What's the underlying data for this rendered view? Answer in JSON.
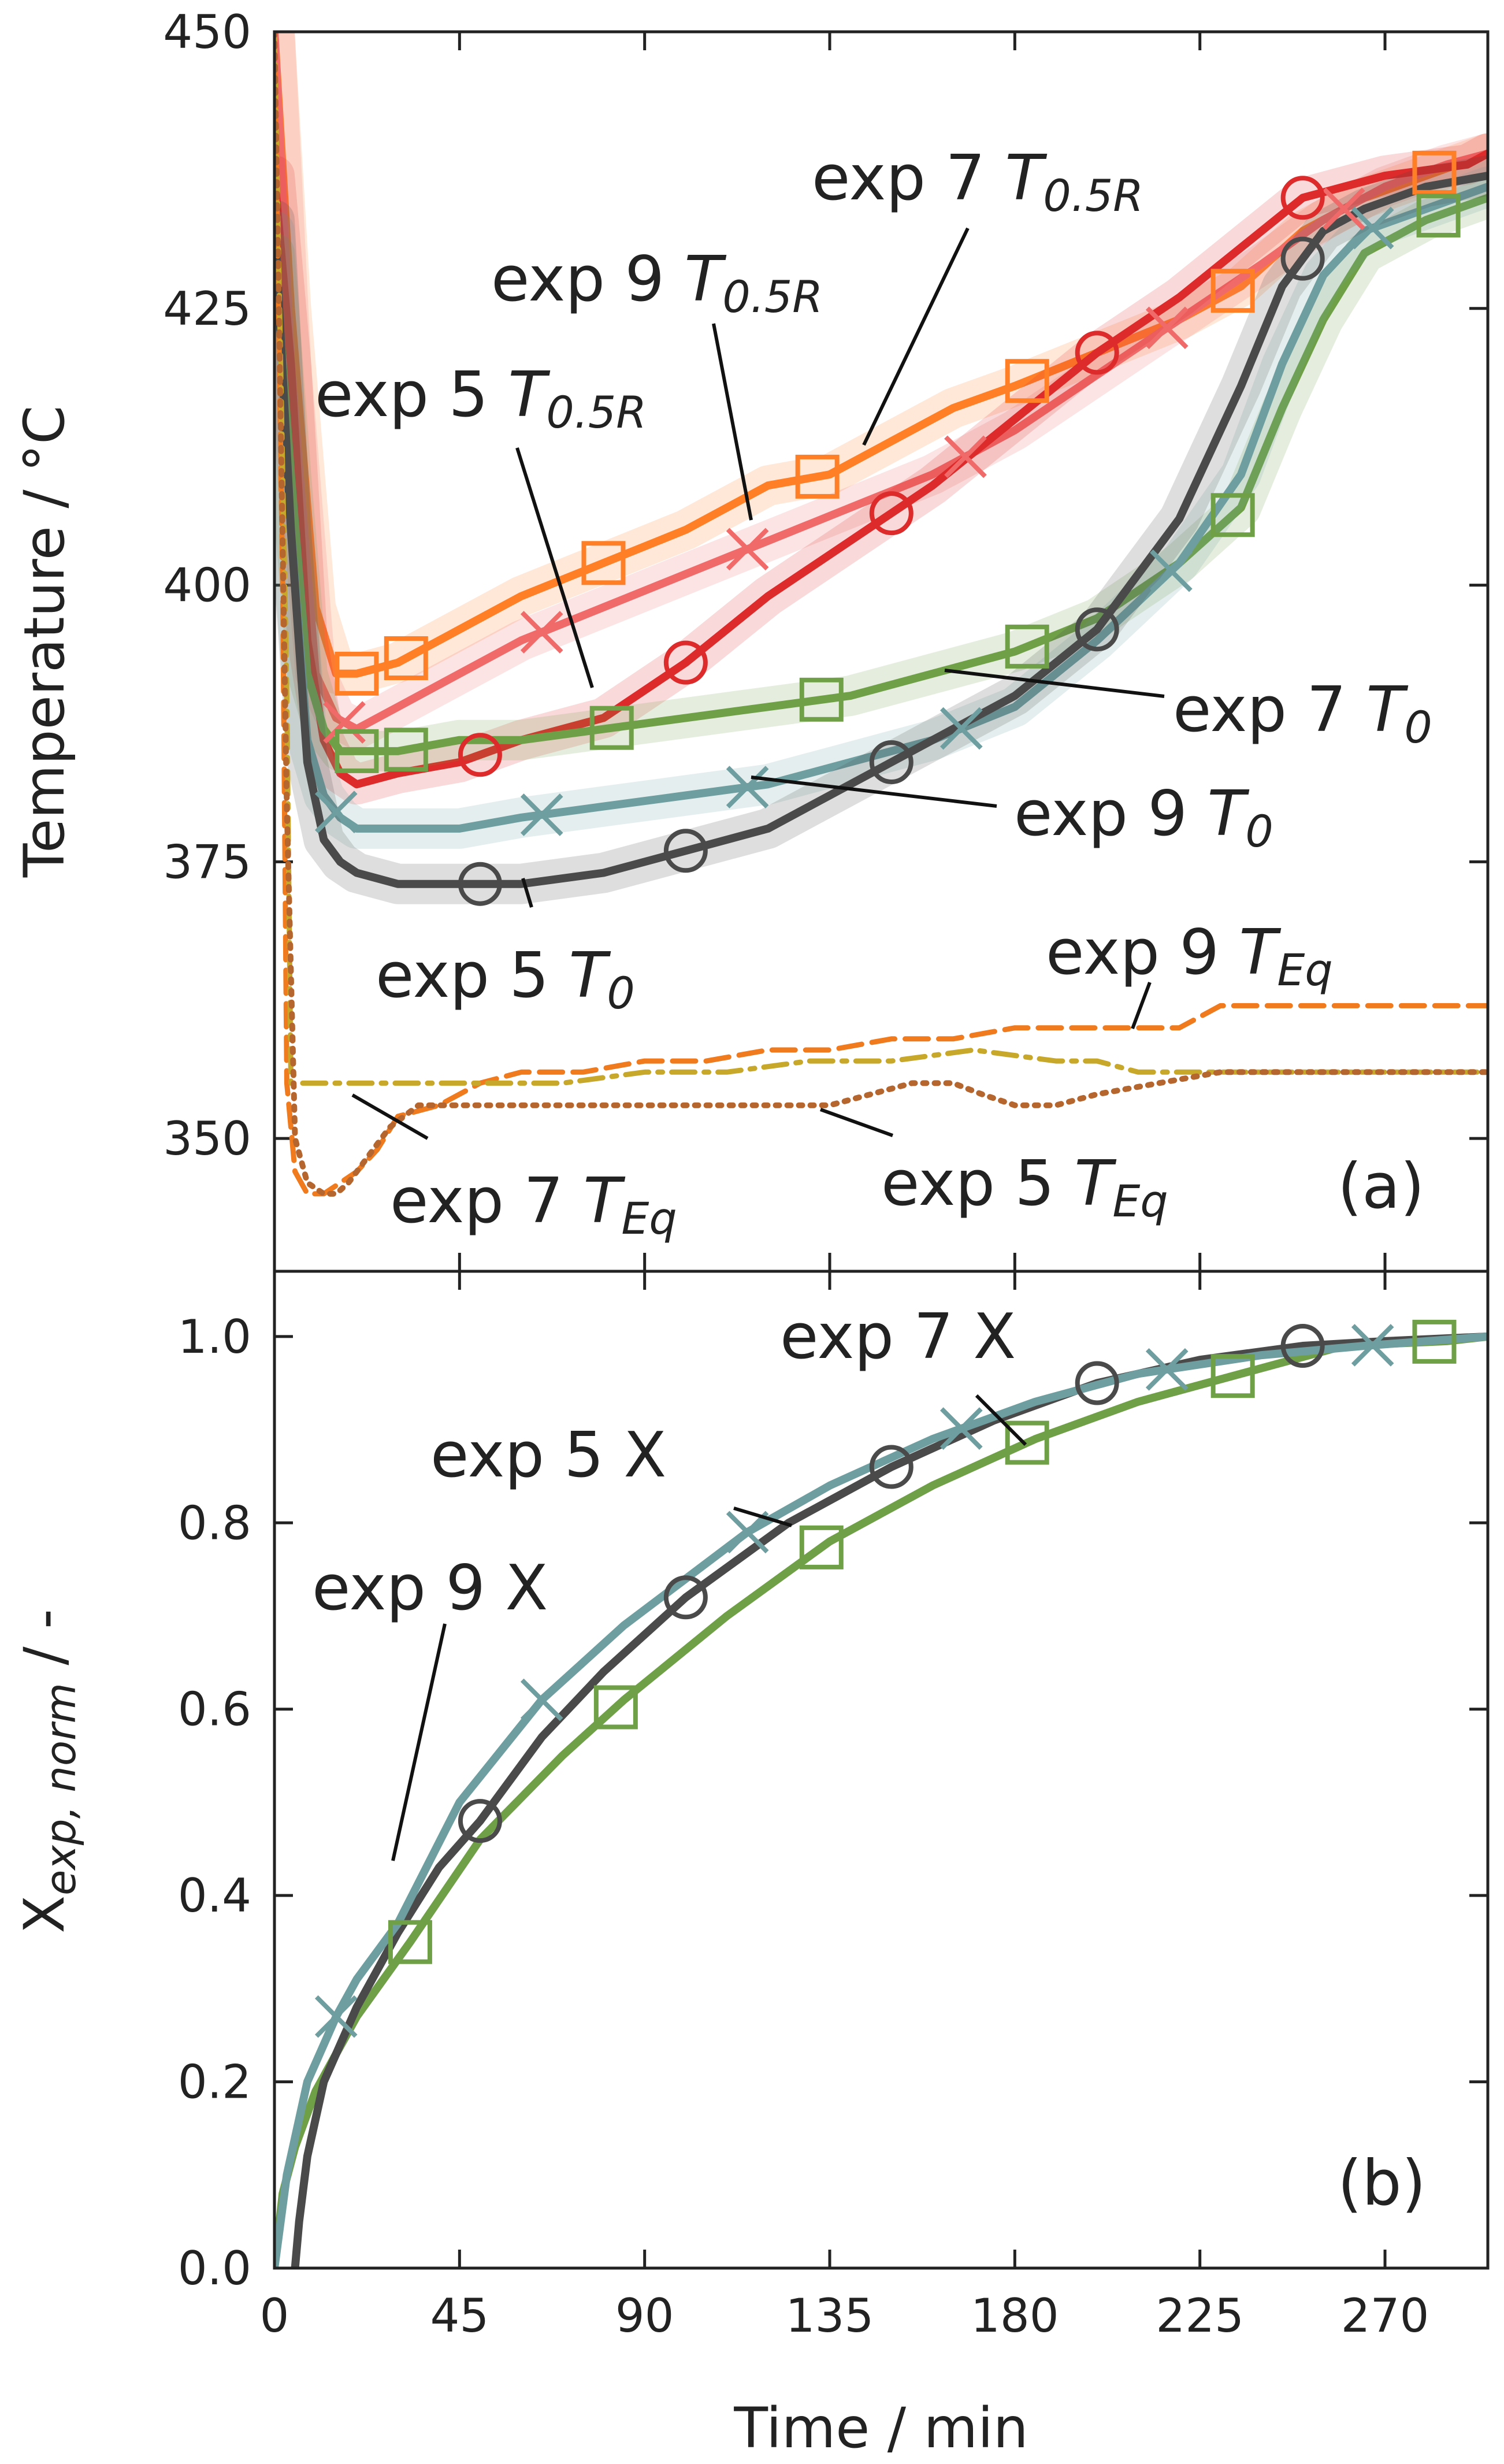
{
  "chart_data": [
    {
      "panel": "a",
      "type": "line",
      "ylabel": "Temperature / °C",
      "xlim": [
        0,
        295
      ],
      "ylim": [
        338,
        450
      ],
      "yticks": [
        350,
        375,
        400,
        425,
        450
      ],
      "panel_label": "(a)",
      "series": [
        {
          "name": "exp 7 T0.5R",
          "color": "#ff7f27",
          "marker": "square",
          "x": [
            0,
            4,
            10,
            15,
            20,
            30,
            45,
            60,
            80,
            100,
            120,
            135,
            150,
            165,
            180,
            200,
            220,
            235,
            250,
            265,
            280,
            295
          ],
          "y": [
            450,
            425,
            398,
            392,
            392,
            393,
            396,
            399,
            402,
            405,
            409,
            410,
            413,
            416,
            418,
            421,
            424,
            427,
            432,
            435,
            437,
            439
          ],
          "marker_x": [
            20,
            32,
            80,
            132,
            183,
            233,
            282
          ]
        },
        {
          "name": "exp 9 T0.5R",
          "color": "#f06a6a",
          "marker": "x",
          "x": [
            0,
            4,
            10,
            15,
            20,
            30,
            45,
            60,
            80,
            100,
            120,
            140,
            160,
            180,
            200,
            220,
            240,
            255,
            270,
            285,
            295
          ],
          "y": [
            450,
            420,
            392,
            388,
            387,
            389,
            392,
            395,
            398,
            401,
            404,
            407,
            410,
            414,
            419,
            424,
            429,
            433,
            436,
            438,
            439
          ],
          "marker_x": [
            17,
            65,
            115,
            168,
            217,
            260
          ]
        },
        {
          "name": "exp 5 T0.5R",
          "color": "#dd2a2a",
          "marker": "circle",
          "x": [
            0,
            4,
            8,
            12,
            16,
            20,
            30,
            45,
            60,
            80,
            100,
            120,
            140,
            160,
            180,
            200,
            220,
            240,
            250,
            270,
            290,
            295
          ],
          "y": [
            437,
            420,
            395,
            386,
            383,
            382,
            383,
            384,
            386,
            388,
            393,
            399,
            404,
            409,
            415,
            421,
            426,
            432,
            435,
            437,
            438,
            439
          ],
          "marker_x": [
            50,
            100,
            150,
            200,
            250
          ]
        },
        {
          "name": "exp 7 T0",
          "color": "#6fa048",
          "marker": "square",
          "x": [
            0,
            4,
            8,
            12,
            16,
            20,
            30,
            45,
            60,
            80,
            100,
            120,
            140,
            160,
            180,
            200,
            220,
            235,
            245,
            255,
            265,
            280,
            295
          ],
          "y": [
            430,
            410,
            392,
            387,
            385,
            385,
            385,
            386,
            386,
            387,
            388,
            389,
            390,
            392,
            394,
            397,
            402,
            407,
            416,
            424,
            430,
            433,
            435
          ],
          "marker_x": [
            20,
            32,
            82,
            133,
            183,
            233,
            283
          ]
        },
        {
          "name": "exp 9 T0",
          "color": "#6e9ea0",
          "marker": "x",
          "x": [
            0,
            4,
            8,
            12,
            16,
            20,
            30,
            45,
            60,
            80,
            100,
            120,
            140,
            160,
            180,
            200,
            220,
            235,
            245,
            255,
            265,
            280,
            295
          ],
          "y": [
            432,
            405,
            386,
            381,
            379,
            378,
            378,
            378,
            379,
            380,
            381,
            382,
            384,
            386,
            389,
            395,
            402,
            410,
            420,
            428,
            432,
            434,
            436
          ],
          "marker_x": [
            15,
            65,
            115,
            167,
            218,
            267
          ]
        },
        {
          "name": "exp 5 T0",
          "color": "#4a4a4a",
          "marker": "circle",
          "x": [
            0,
            4,
            8,
            12,
            16,
            20,
            30,
            45,
            60,
            80,
            100,
            120,
            140,
            160,
            180,
            200,
            220,
            235,
            245,
            255,
            265,
            280,
            295
          ],
          "y": [
            433,
            405,
            384,
            377,
            375,
            374,
            373,
            373,
            373,
            374,
            376,
            378,
            382,
            386,
            390,
            396,
            406,
            418,
            427,
            432,
            434,
            436,
            437
          ],
          "marker_x": [
            50,
            100,
            150,
            200,
            250
          ]
        },
        {
          "name": "exp 9 TEq",
          "color": "#f07a1e",
          "style": "dashed",
          "x": [
            0,
            2,
            3,
            5,
            8,
            12,
            16,
            20,
            25,
            30,
            40,
            50,
            60,
            75,
            90,
            105,
            120,
            135,
            150,
            165,
            180,
            200,
            220,
            230,
            240,
            260,
            280,
            295
          ],
          "y": [
            450,
            400,
            355,
            347,
            345,
            345,
            346,
            347,
            349,
            352,
            353,
            355,
            356,
            356,
            357,
            357,
            358,
            358,
            359,
            359,
            360,
            360,
            360,
            362,
            362,
            362,
            362,
            362
          ]
        },
        {
          "name": "exp 7 TEq",
          "color": "#c8a82a",
          "style": "dashdot",
          "x": [
            0,
            3,
            4,
            8,
            15,
            25,
            40,
            55,
            70,
            90,
            110,
            130,
            150,
            170,
            190,
            200,
            210,
            220,
            235,
            250,
            270,
            295
          ],
          "y": [
            450,
            390,
            355,
            355,
            355,
            355,
            355,
            355,
            355,
            356,
            356,
            357,
            357,
            358,
            357,
            357,
            356,
            356,
            356,
            356,
            356,
            356
          ]
        },
        {
          "name": "exp 5 TEq",
          "color": "#b5652e",
          "style": "dotted",
          "x": [
            0,
            3,
            5,
            8,
            12,
            15,
            18,
            22,
            28,
            35,
            45,
            60,
            80,
            100,
            120,
            135,
            145,
            155,
            165,
            172,
            180,
            190,
            200,
            215,
            230,
            250,
            270,
            295
          ],
          "y": [
            450,
            380,
            350,
            346,
            345,
            345,
            346,
            348,
            351,
            353,
            353,
            353,
            353,
            353,
            353,
            353,
            354,
            355,
            355,
            354,
            353,
            353,
            354,
            355,
            356,
            356,
            356,
            356
          ]
        }
      ],
      "annotations": [
        {
          "text": "exp 7 ",
          "sub_t": "T",
          "sub": "0.5R"
        },
        {
          "text": "exp 9 ",
          "sub_t": "T",
          "sub": "0.5R"
        },
        {
          "text": "exp 5 ",
          "sub_t": "T",
          "sub": "0.5R"
        },
        {
          "text": "exp 7 ",
          "sub_t": "T",
          "sub": "0"
        },
        {
          "text": "exp 9 ",
          "sub_t": "T",
          "sub": "0"
        },
        {
          "text": "exp 5 ",
          "sub_t": "T",
          "sub": "0"
        },
        {
          "text": "exp 9 ",
          "sub_t": "T",
          "sub": "Eq"
        },
        {
          "text": "exp 7 ",
          "sub_t": "T",
          "sub": "Eq"
        },
        {
          "text": "exp 5 ",
          "sub_t": "T",
          "sub": "Eq"
        }
      ]
    },
    {
      "panel": "b",
      "type": "line",
      "xlabel": "Time / min",
      "ylabel_main": "X",
      "ylabel_sub": "exp, norm",
      "ylabel_rest": " / -",
      "xlim": [
        0,
        295
      ],
      "ylim": [
        0.0,
        1.07
      ],
      "xticks": [
        0,
        45,
        90,
        135,
        180,
        225,
        270
      ],
      "yticks": [
        0.0,
        0.2,
        0.4,
        0.6,
        0.8,
        1.0
      ],
      "panel_label": "(b)",
      "series": [
        {
          "name": "exp 7 X",
          "color": "#6fa048",
          "marker": "square",
          "x": [
            0,
            2,
            5,
            10,
            20,
            33,
            50,
            70,
            85,
            110,
            135,
            160,
            185,
            210,
            235,
            260,
            285,
            295
          ],
          "y": [
            0.0,
            0.08,
            0.13,
            0.19,
            0.27,
            0.35,
            0.46,
            0.55,
            0.61,
            0.7,
            0.78,
            0.84,
            0.89,
            0.93,
            0.96,
            0.99,
            0.995,
            1.0
          ],
          "marker_x": [
            33,
            83,
            133,
            183,
            233,
            282
          ]
        },
        {
          "name": "exp 5 X",
          "color": "#4a4a4a",
          "marker": "circle",
          "x": [
            5,
            6,
            8,
            12,
            20,
            30,
            40,
            50,
            65,
            80,
            100,
            125,
            150,
            175,
            200,
            225,
            250,
            270,
            295
          ],
          "y": [
            0.0,
            0.05,
            0.12,
            0.2,
            0.28,
            0.36,
            0.43,
            0.48,
            0.57,
            0.64,
            0.72,
            0.8,
            0.86,
            0.91,
            0.95,
            0.975,
            0.99,
            0.995,
            1.0
          ],
          "marker_x": [
            50,
            100,
            150,
            200,
            250
          ]
        },
        {
          "name": "exp 9 X",
          "color": "#6e9ea0",
          "marker": "x",
          "x": [
            0,
            3,
            8,
            15,
            20,
            30,
            45,
            65,
            85,
            100,
            115,
            135,
            160,
            185,
            210,
            240,
            265,
            295
          ],
          "y": [
            0.0,
            0.1,
            0.2,
            0.27,
            0.31,
            0.37,
            0.5,
            0.61,
            0.69,
            0.74,
            0.79,
            0.84,
            0.89,
            0.93,
            0.96,
            0.98,
            0.99,
            1.0
          ],
          "marker_x": [
            15,
            65,
            115,
            167,
            217,
            267
          ]
        }
      ],
      "annotations": [
        {
          "text": "exp 7 X"
        },
        {
          "text": "exp 5 X"
        },
        {
          "text": "exp 9 X"
        }
      ]
    }
  ]
}
